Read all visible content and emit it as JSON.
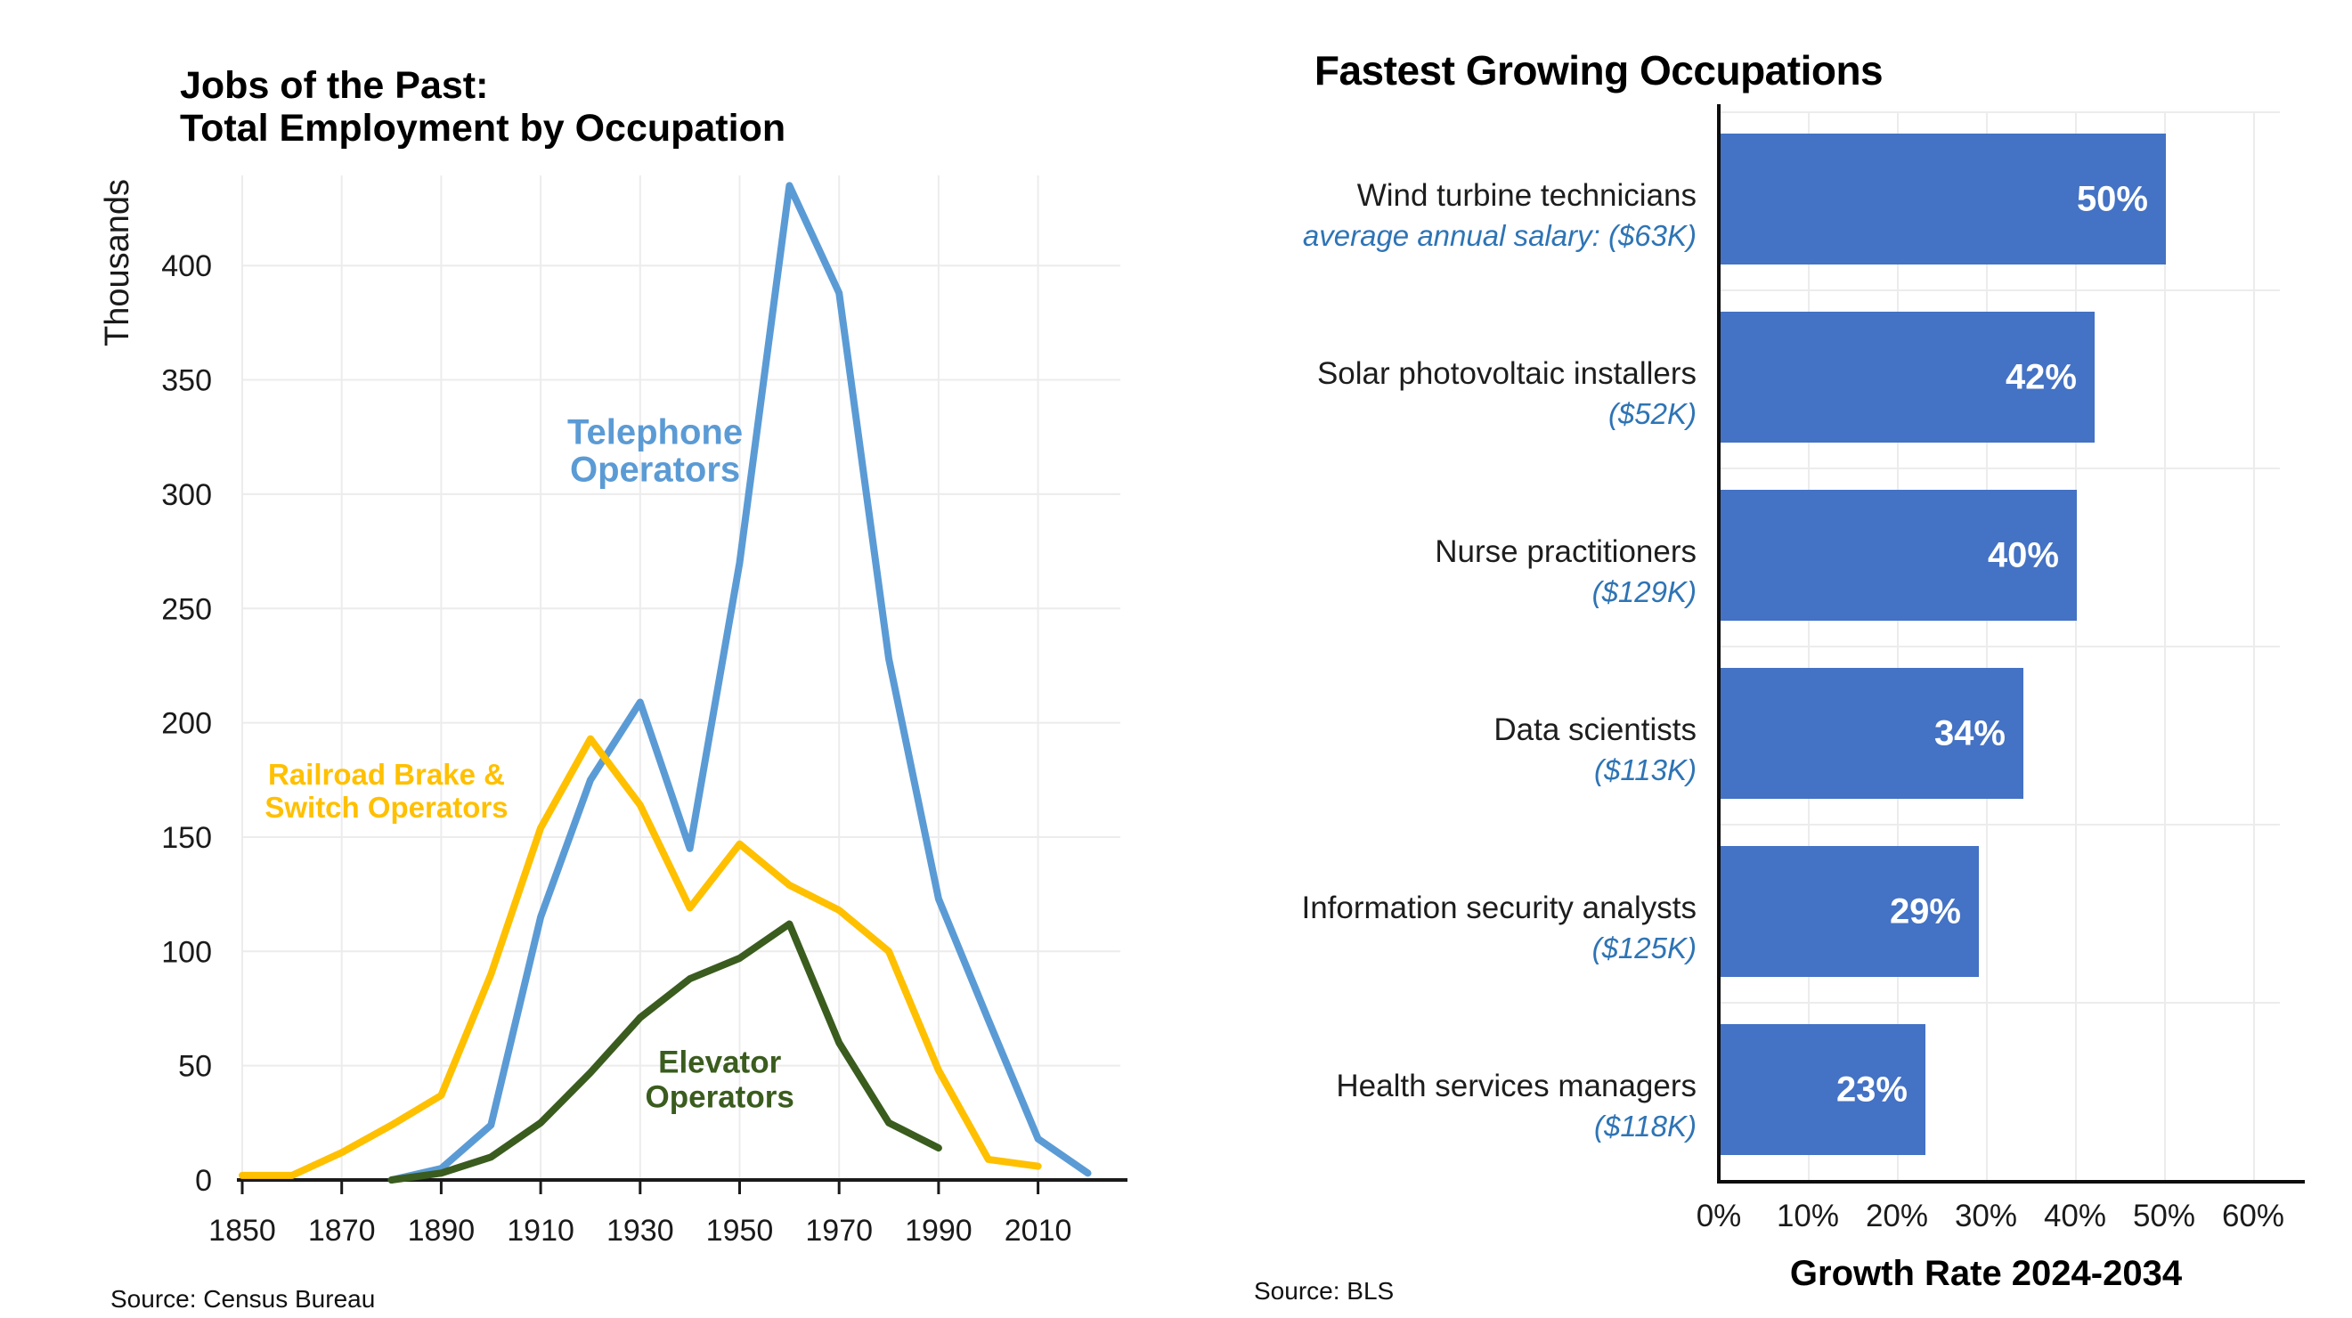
{
  "chart_data": [
    {
      "type": "line",
      "title": [
        "Jobs of the Past:",
        "Total Employment by Occupation"
      ],
      "ylabel": "Thousands",
      "xlabel": "",
      "source": "Source: Census Bureau",
      "x_ticks": [
        1850,
        1870,
        1890,
        1910,
        1930,
        1950,
        1970,
        1990,
        2010
      ],
      "y_ticks": [
        0,
        50,
        100,
        150,
        200,
        250,
        300,
        350,
        400
      ],
      "xlim": [
        1850,
        2022
      ],
      "ylim": [
        0,
        450
      ],
      "grid": true,
      "legend_position": "inline-labels",
      "colors": {
        "grid": "#ececec",
        "axis": "#1a1a1a",
        "tick_text": "#1a1a1a"
      },
      "series": [
        {
          "name": "Telephone Operators",
          "color": "#5B9BD5",
          "label_lines": [
            "Telephone",
            "Operators"
          ],
          "label_anchor": {
            "year": 1933,
            "value": 322
          },
          "points": [
            [
              1880,
              0
            ],
            [
              1890,
              5
            ],
            [
              1900,
              24
            ],
            [
              1910,
              115
            ],
            [
              1920,
              175
            ],
            [
              1930,
              209
            ],
            [
              1940,
              145
            ],
            [
              1950,
              270
            ],
            [
              1960,
              435
            ],
            [
              1970,
              388
            ],
            [
              1980,
              228
            ],
            [
              1990,
              123
            ],
            [
              2000,
              70
            ],
            [
              2010,
              18
            ],
            [
              2020,
              3
            ]
          ]
        },
        {
          "name": "Railroad Brake & Switch Operators",
          "color": "#FFC000",
          "label_lines": [
            "Railroad Brake &",
            "Switch Operators"
          ],
          "label_anchor": {
            "year": 1879,
            "value": 173
          },
          "points": [
            [
              1850,
              2
            ],
            [
              1860,
              2
            ],
            [
              1870,
              12
            ],
            [
              1880,
              24
            ],
            [
              1890,
              37
            ],
            [
              1900,
              90
            ],
            [
              1910,
              154
            ],
            [
              1920,
              193
            ],
            [
              1930,
              164
            ],
            [
              1940,
              119
            ],
            [
              1950,
              147
            ],
            [
              1960,
              129
            ],
            [
              1970,
              118
            ],
            [
              1980,
              100
            ],
            [
              1990,
              48
            ],
            [
              2000,
              9
            ],
            [
              2010,
              6
            ]
          ]
        },
        {
          "name": "Elevator Operators",
          "color": "#3A5C1E",
          "label_lines": [
            "Elevator",
            "Operators"
          ],
          "label_anchor": {
            "year": 1946,
            "value": 47
          },
          "points": [
            [
              1880,
              0
            ],
            [
              1890,
              3
            ],
            [
              1900,
              10
            ],
            [
              1910,
              25
            ],
            [
              1920,
              47
            ],
            [
              1930,
              71
            ],
            [
              1940,
              88
            ],
            [
              1950,
              97
            ],
            [
              1960,
              112
            ],
            [
              1970,
              60
            ],
            [
              1980,
              25
            ],
            [
              1990,
              14
            ]
          ]
        }
      ]
    },
    {
      "type": "bar",
      "orientation": "horizontal",
      "title": "Fastest Growing Occupations",
      "xlabel": "Growth Rate 2024-2034",
      "source": "Source: BLS",
      "x_ticks": [
        0,
        10,
        20,
        30,
        40,
        50,
        60
      ],
      "x_tick_labels": [
        "0%",
        "10%",
        "20%",
        "30%",
        "40%",
        "50%",
        "60%"
      ],
      "xlim": [
        0,
        63
      ],
      "grid": true,
      "bar_color": "#4472C4",
      "value_label_color": "#ffffff",
      "name_color": "#1d1d1d",
      "salary_color": "#2E74B5",
      "categories": [
        "Wind turbine technicians",
        "Solar photovoltaic installers",
        "Nurse practitioners",
        "Data scientists",
        "Information security analysts",
        "Health services managers"
      ],
      "salaries": [
        "average annual salary: ($63K)",
        "($52K)",
        "($129K)",
        "($113K)",
        "($125K)",
        "($118K)"
      ],
      "values": [
        50,
        42,
        40,
        34,
        29,
        23
      ],
      "value_labels": [
        "50%",
        "42%",
        "40%",
        "34%",
        "29%",
        "23%"
      ]
    }
  ]
}
